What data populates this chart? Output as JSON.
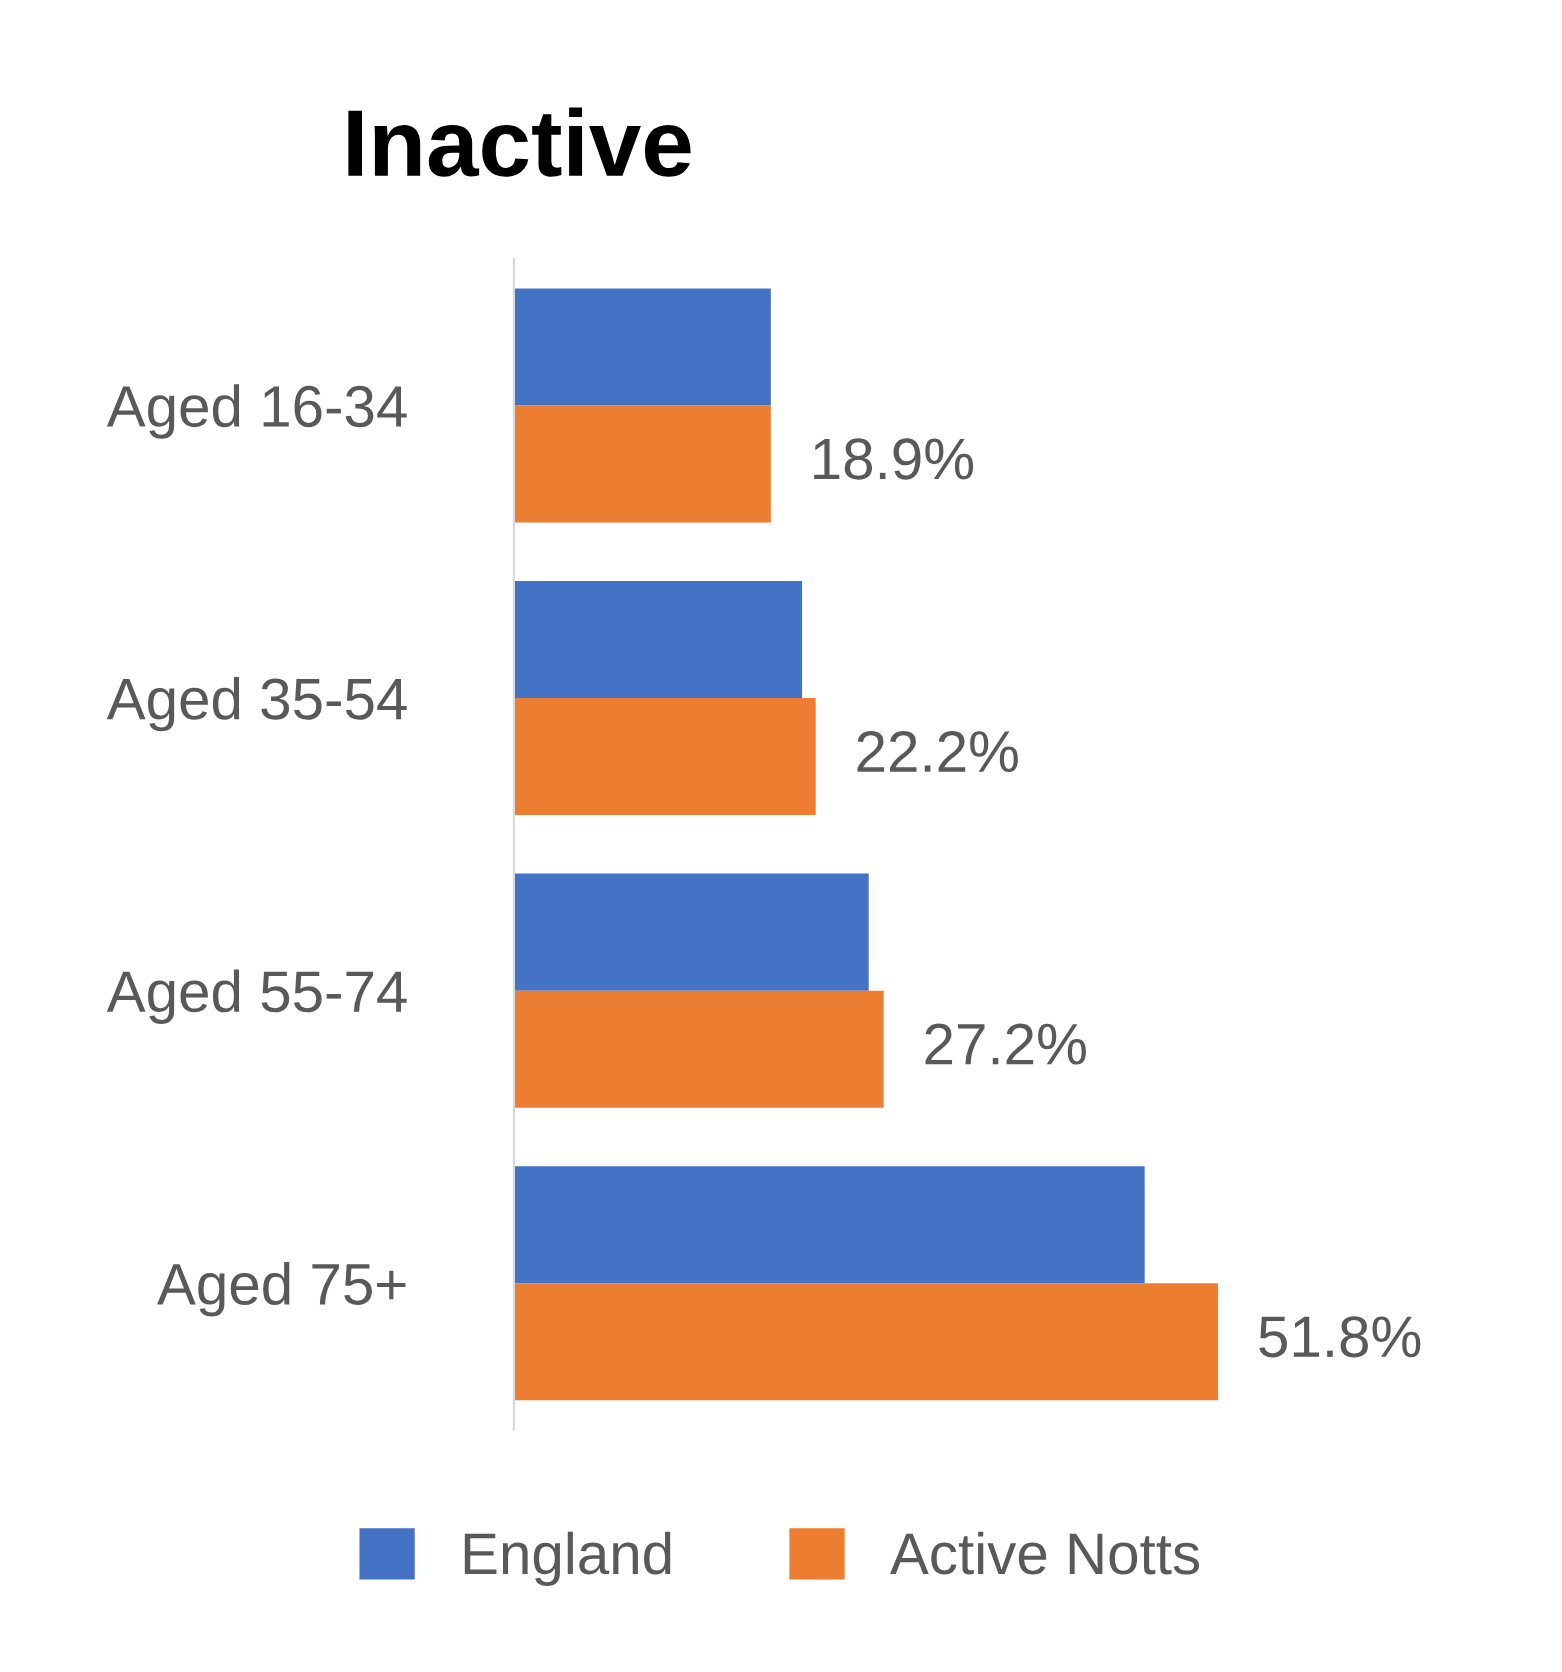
{
  "chart_data": {
    "type": "bar",
    "orientation": "horizontal",
    "title": "Inactive",
    "categories": [
      "Aged 16-34",
      "Aged 35-54",
      "Aged 55-74",
      "Aged 75+"
    ],
    "series": [
      {
        "name": "England",
        "color": "#4472c4",
        "values": [
          18.9,
          21.2,
          26.1,
          46.4
        ]
      },
      {
        "name": "Active Notts",
        "color": "#ed7d31",
        "values": [
          18.9,
          22.2,
          27.2,
          51.8
        ],
        "value_labels": [
          "18.9%",
          "22.2%",
          "27.2%",
          "51.8%"
        ]
      }
    ],
    "legend": "bottom",
    "grid": false,
    "tick_labels": "y"
  }
}
